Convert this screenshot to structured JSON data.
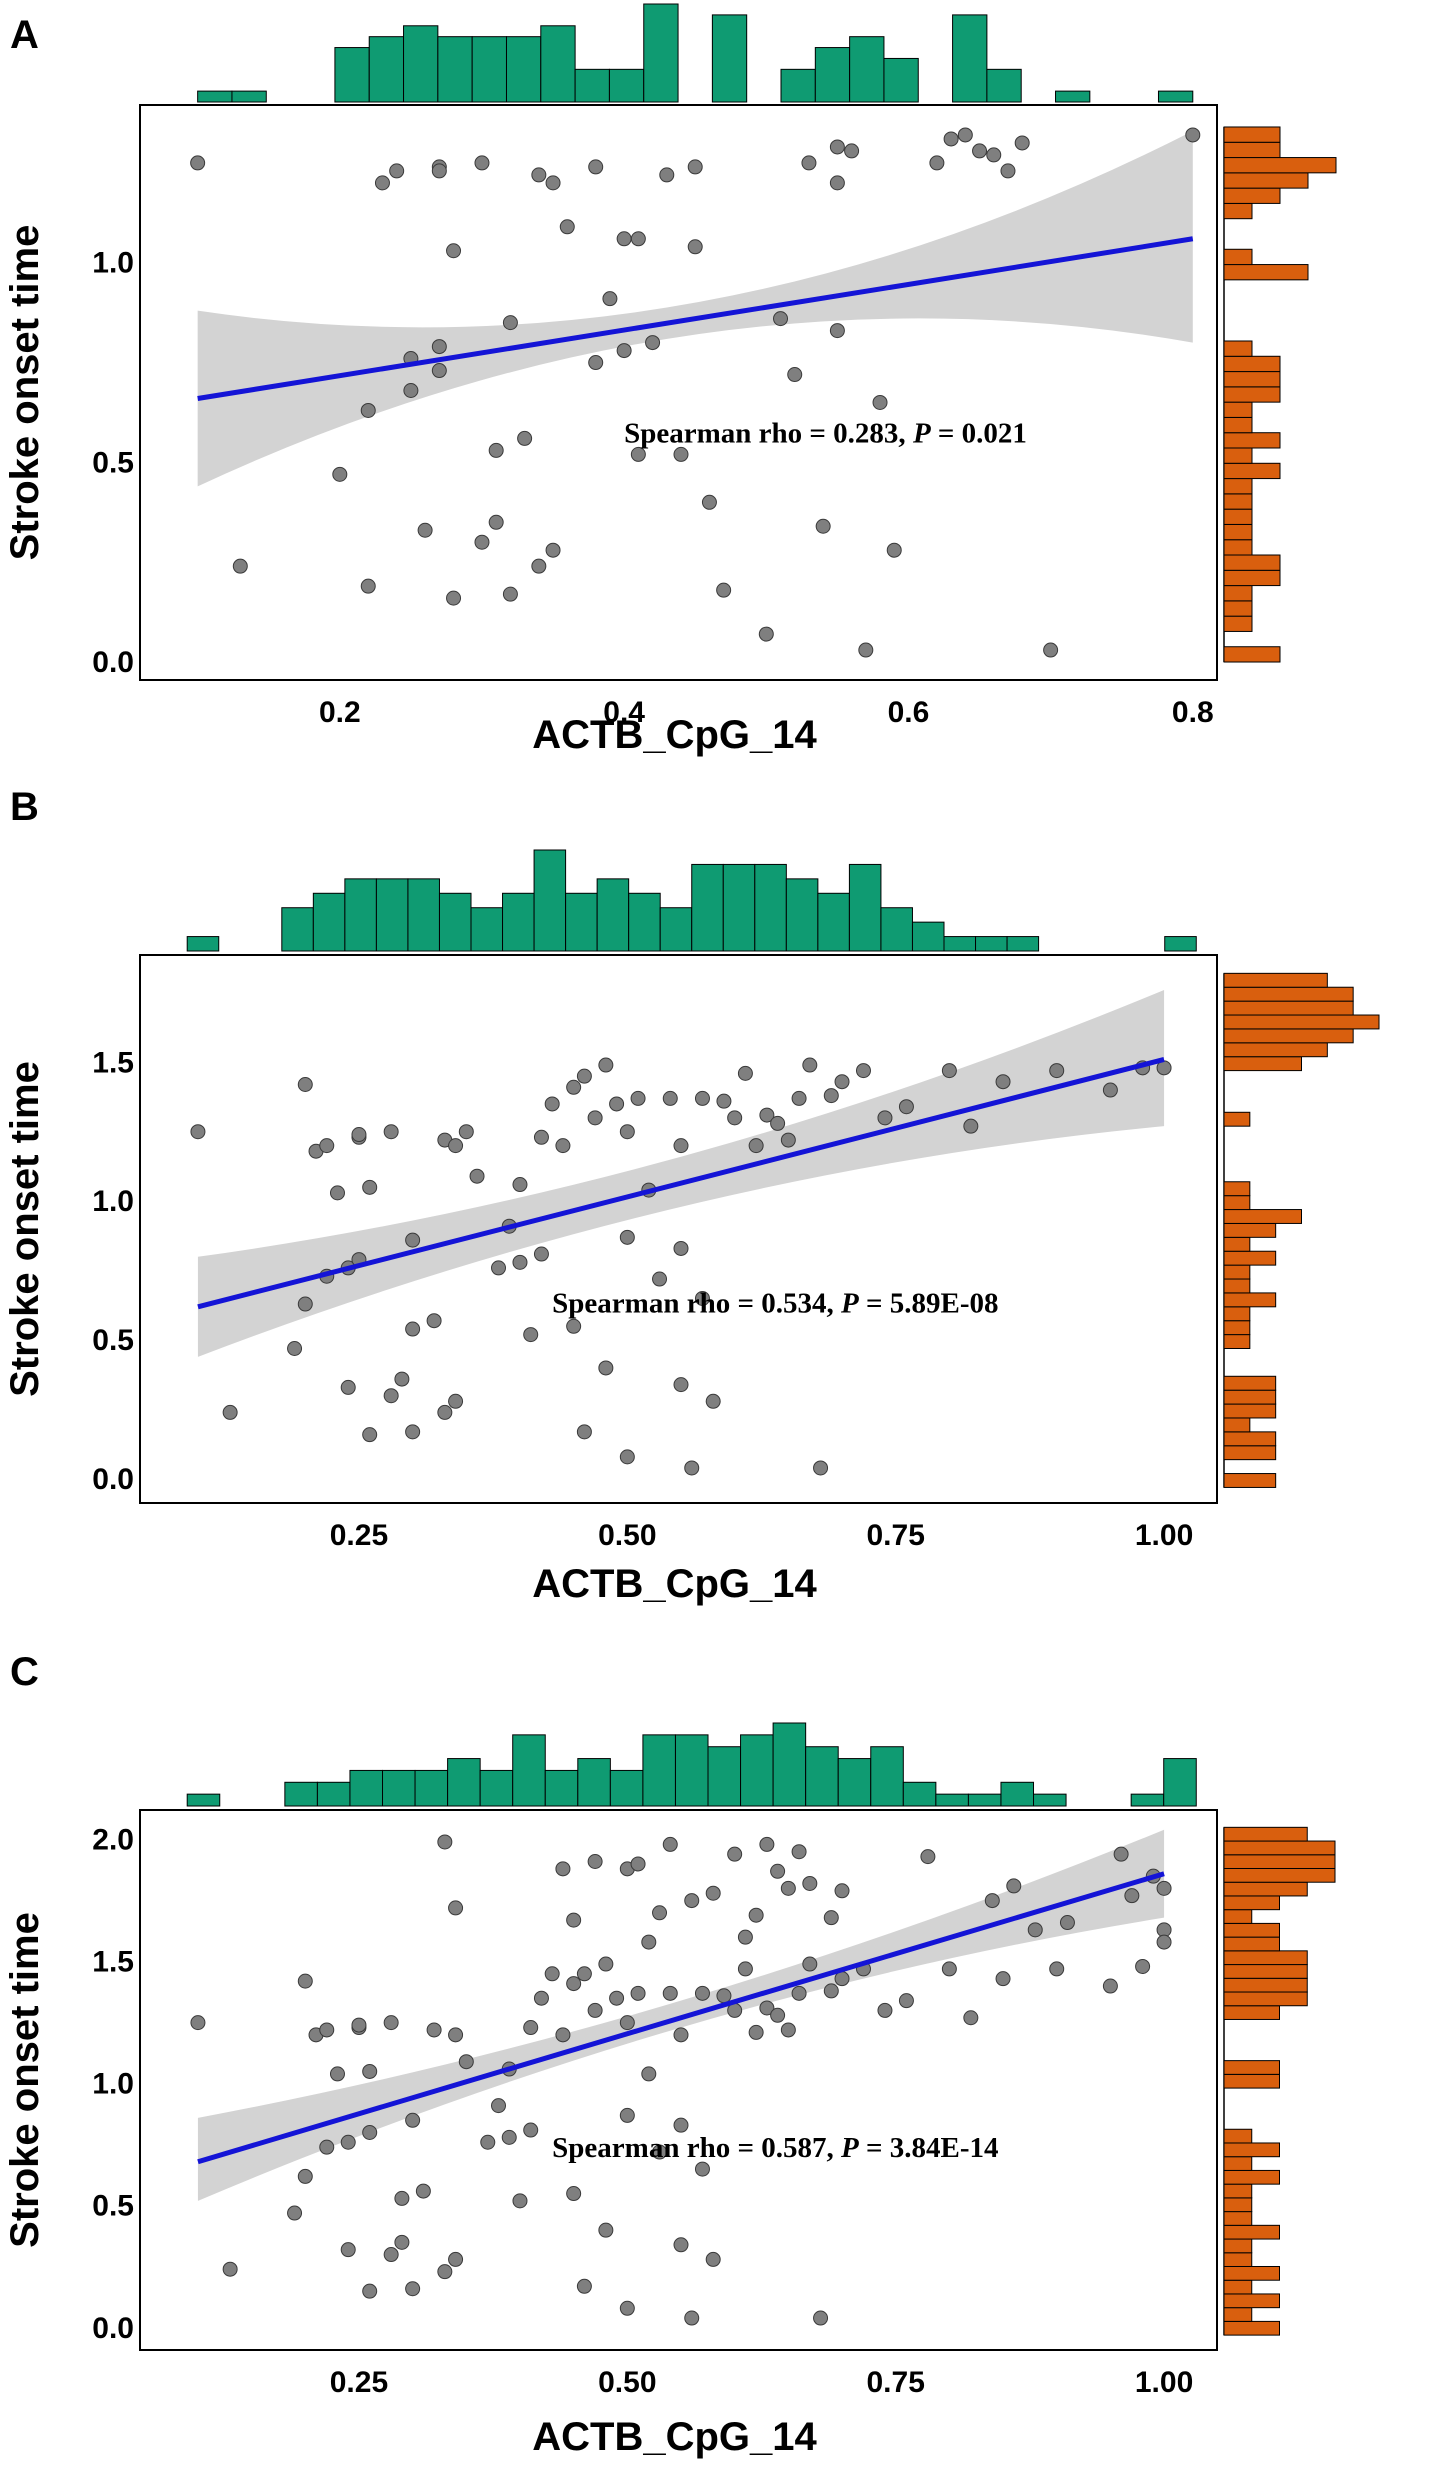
{
  "colors": {
    "top_hist": "#0f9b72",
    "right_hist": "#d95f0e",
    "fit_line": "#1414d6",
    "band": "#d3d3d3",
    "points": "#7f7f7f"
  },
  "chart_data": [
    {
      "type": "scatter",
      "panel": "A",
      "xlabel": "ACTB_CpG_14",
      "ylabel": "Stroke onset time",
      "xlim": [
        0.07,
        0.81
      ],
      "ylim": [
        -0.02,
        1.37
      ],
      "xticks": [
        0.2,
        0.4,
        0.6,
        0.8
      ],
      "xtick_labels": [
        "0.2",
        "0.4",
        "0.6",
        "0.8"
      ],
      "yticks": [
        0.0,
        0.5,
        1.0
      ],
      "ytick_labels": [
        "0.0",
        "0.5",
        "1.0"
      ],
      "annotation": {
        "prefix": "Spearman rho = 0.283, ",
        "p_label": "P",
        "suffix": " = 0.021"
      },
      "fit": {
        "x0": 0.1,
        "y0": 0.66,
        "x1": 0.8,
        "y1": 1.06,
        "lo0": 0.44,
        "lo_mid": 0.82,
        "lo1": 0.8,
        "hi0": 0.88,
        "hi_mid": 0.9,
        "hi1": 1.33
      },
      "points": [
        [
          0.1,
          1.25
        ],
        [
          0.13,
          0.24
        ],
        [
          0.2,
          0.47
        ],
        [
          0.22,
          0.19
        ],
        [
          0.22,
          0.63
        ],
        [
          0.23,
          1.2
        ],
        [
          0.24,
          1.23
        ],
        [
          0.25,
          0.76
        ],
        [
          0.25,
          0.68
        ],
        [
          0.26,
          0.33
        ],
        [
          0.27,
          1.24
        ],
        [
          0.27,
          1.23
        ],
        [
          0.27,
          0.73
        ],
        [
          0.27,
          0.79
        ],
        [
          0.28,
          0.16
        ],
        [
          0.28,
          1.03
        ],
        [
          0.3,
          1.25
        ],
        [
          0.3,
          0.3
        ],
        [
          0.31,
          0.53
        ],
        [
          0.31,
          0.35
        ],
        [
          0.32,
          0.17
        ],
        [
          0.32,
          0.85
        ],
        [
          0.33,
          0.56
        ],
        [
          0.34,
          1.22
        ],
        [
          0.34,
          0.24
        ],
        [
          0.35,
          0.28
        ],
        [
          0.35,
          1.2
        ],
        [
          0.36,
          1.09
        ],
        [
          0.38,
          1.24
        ],
        [
          0.38,
          0.75
        ],
        [
          0.39,
          0.91
        ],
        [
          0.4,
          0.78
        ],
        [
          0.4,
          1.06
        ],
        [
          0.41,
          1.06
        ],
        [
          0.41,
          0.52
        ],
        [
          0.42,
          0.8
        ],
        [
          0.43,
          1.22
        ],
        [
          0.44,
          0.52
        ],
        [
          0.45,
          1.04
        ],
        [
          0.45,
          1.24
        ],
        [
          0.46,
          0.4
        ],
        [
          0.47,
          0.18
        ],
        [
          0.5,
          0.07
        ],
        [
          0.51,
          0.86
        ],
        [
          0.52,
          0.72
        ],
        [
          0.53,
          1.25
        ],
        [
          0.54,
          0.34
        ],
        [
          0.55,
          1.29
        ],
        [
          0.55,
          1.2
        ],
        [
          0.55,
          0.83
        ],
        [
          0.56,
          1.28
        ],
        [
          0.57,
          0.03
        ],
        [
          0.58,
          0.65
        ],
        [
          0.59,
          0.28
        ],
        [
          0.62,
          1.25
        ],
        [
          0.63,
          1.31
        ],
        [
          0.64,
          1.32
        ],
        [
          0.65,
          1.28
        ],
        [
          0.66,
          1.27
        ],
        [
          0.67,
          1.23
        ],
        [
          0.68,
          1.3
        ],
        [
          0.7,
          0.03
        ],
        [
          0.8,
          1.32
        ]
      ],
      "top_hist_counts": [
        1,
        1,
        0,
        0,
        5,
        6,
        7,
        6,
        6,
        6,
        7,
        3,
        3,
        9,
        0,
        8,
        0,
        3,
        5,
        6,
        4,
        0,
        8,
        3,
        0,
        1,
        0,
        0,
        1
      ],
      "right_hist_counts": [
        2,
        0,
        1,
        1,
        1,
        2,
        2,
        1,
        1,
        1,
        1,
        1,
        2,
        1,
        2,
        1,
        1,
        2,
        2,
        2,
        1,
        0,
        0,
        0,
        0,
        3,
        1,
        0,
        0,
        1,
        2,
        3,
        4,
        2,
        2
      ]
    },
    {
      "type": "scatter",
      "panel": "B",
      "xlabel": "ACTB_CpG_14",
      "ylabel": "Stroke onset time",
      "xlim": [
        0.06,
        1.04
      ],
      "ylim": [
        -0.05,
        1.85
      ],
      "xticks": [
        0.25,
        0.5,
        0.75,
        1.0
      ],
      "xtick_labels": [
        "0.25",
        "0.50",
        "0.75",
        "1.00"
      ],
      "yticks": [
        0.0,
        0.5,
        1.0,
        1.5
      ],
      "ytick_labels": [
        "0.0",
        "0.5",
        "1.0",
        "1.5"
      ],
      "annotation": {
        "prefix": "Spearman rho = 0.534, ",
        "p_label": "P",
        "suffix": " = 5.89E-08"
      },
      "fit": {
        "x0": 0.1,
        "y0": 0.62,
        "x1": 1.0,
        "y1": 1.51,
        "lo0": 0.44,
        "lo_mid": 0.98,
        "lo1": 1.27,
        "hi0": 0.8,
        "hi_mid": 1.16,
        "hi1": 1.76
      },
      "points": [
        [
          0.1,
          1.25
        ],
        [
          0.13,
          0.24
        ],
        [
          0.19,
          0.47
        ],
        [
          0.2,
          0.63
        ],
        [
          0.2,
          1.42
        ],
        [
          0.21,
          1.18
        ],
        [
          0.22,
          0.73
        ],
        [
          0.22,
          1.2
        ],
        [
          0.23,
          1.03
        ],
        [
          0.24,
          0.33
        ],
        [
          0.24,
          0.76
        ],
        [
          0.25,
          1.23
        ],
        [
          0.25,
          1.24
        ],
        [
          0.25,
          0.79
        ],
        [
          0.26,
          0.16
        ],
        [
          0.26,
          1.05
        ],
        [
          0.28,
          1.25
        ],
        [
          0.28,
          0.3
        ],
        [
          0.29,
          0.36
        ],
        [
          0.3,
          0.54
        ],
        [
          0.3,
          0.17
        ],
        [
          0.3,
          0.86
        ],
        [
          0.32,
          0.57
        ],
        [
          0.33,
          1.22
        ],
        [
          0.33,
          0.24
        ],
        [
          0.34,
          0.28
        ],
        [
          0.34,
          1.2
        ],
        [
          0.35,
          1.25
        ],
        [
          0.36,
          1.09
        ],
        [
          0.38,
          0.76
        ],
        [
          0.39,
          0.91
        ],
        [
          0.4,
          1.06
        ],
        [
          0.4,
          0.78
        ],
        [
          0.41,
          0.52
        ],
        [
          0.42,
          0.81
        ],
        [
          0.42,
          1.23
        ],
        [
          0.43,
          1.35
        ],
        [
          0.44,
          1.2
        ],
        [
          0.45,
          1.41
        ],
        [
          0.45,
          0.55
        ],
        [
          0.46,
          0.17
        ],
        [
          0.46,
          1.45
        ],
        [
          0.47,
          1.3
        ],
        [
          0.48,
          1.49
        ],
        [
          0.48,
          0.4
        ],
        [
          0.49,
          1.35
        ],
        [
          0.5,
          0.08
        ],
        [
          0.5,
          1.25
        ],
        [
          0.5,
          0.87
        ],
        [
          0.51,
          1.37
        ],
        [
          0.52,
          1.04
        ],
        [
          0.53,
          0.72
        ],
        [
          0.54,
          1.37
        ],
        [
          0.55,
          0.34
        ],
        [
          0.55,
          1.2
        ],
        [
          0.55,
          0.83
        ],
        [
          0.56,
          0.04
        ],
        [
          0.57,
          1.37
        ],
        [
          0.57,
          0.65
        ],
        [
          0.58,
          0.28
        ],
        [
          0.59,
          1.36
        ],
        [
          0.6,
          1.3
        ],
        [
          0.61,
          1.46
        ],
        [
          0.62,
          1.2
        ],
        [
          0.63,
          1.31
        ],
        [
          0.64,
          1.28
        ],
        [
          0.65,
          1.22
        ],
        [
          0.66,
          1.37
        ],
        [
          0.67,
          1.49
        ],
        [
          0.68,
          0.04
        ],
        [
          0.69,
          1.38
        ],
        [
          0.7,
          1.43
        ],
        [
          0.72,
          1.47
        ],
        [
          0.74,
          1.3
        ],
        [
          0.76,
          1.34
        ],
        [
          0.8,
          1.47
        ],
        [
          0.82,
          1.27
        ],
        [
          0.85,
          1.43
        ],
        [
          0.9,
          1.47
        ],
        [
          0.95,
          1.4
        ],
        [
          0.98,
          1.48
        ],
        [
          1.0,
          1.48
        ]
      ],
      "top_hist_counts": [
        1,
        0,
        0,
        3,
        4,
        5,
        5,
        5,
        4,
        3,
        4,
        7,
        4,
        5,
        4,
        3,
        6,
        6,
        6,
        5,
        4,
        6,
        3,
        2,
        1,
        1,
        1,
        0,
        0,
        0,
        0,
        1
      ],
      "right_hist_counts": [
        2,
        0,
        2,
        2,
        1,
        2,
        2,
        2,
        0,
        0,
        1,
        1,
        1,
        2,
        1,
        1,
        2,
        1,
        2,
        3,
        1,
        1,
        0,
        0,
        0,
        0,
        1,
        0,
        0,
        0,
        3,
        4,
        5,
        6,
        5,
        5,
        4
      ]
    },
    {
      "type": "scatter",
      "panel": "C",
      "xlabel": "ACTB_CpG_14",
      "ylabel": "Stroke onset time",
      "xlim": [
        0.06,
        1.04
      ],
      "ylim": [
        -0.05,
        2.08
      ],
      "xticks": [
        0.25,
        0.5,
        0.75,
        1.0
      ],
      "xtick_labels": [
        "0.25",
        "0.50",
        "0.75",
        "1.00"
      ],
      "yticks": [
        0.0,
        0.5,
        1.0,
        1.5,
        2.0
      ],
      "ytick_labels": [
        "0.0",
        "0.5",
        "1.0",
        "1.5",
        "2.0"
      ],
      "annotation": {
        "prefix": "Spearman rho = 0.587, ",
        "p_label": "P",
        "suffix": " = 3.84E-14"
      },
      "fit": {
        "x0": 0.1,
        "y0": 0.68,
        "x1": 1.0,
        "y1": 1.86,
        "lo0": 0.52,
        "lo_mid": 1.23,
        "lo1": 1.68,
        "hi0": 0.86,
        "hi_mid": 1.34,
        "hi1": 2.04
      },
      "points": [
        [
          0.1,
          1.25
        ],
        [
          0.13,
          0.24
        ],
        [
          0.19,
          0.47
        ],
        [
          0.2,
          0.62
        ],
        [
          0.2,
          1.42
        ],
        [
          0.21,
          1.2
        ],
        [
          0.22,
          0.74
        ],
        [
          0.22,
          1.22
        ],
        [
          0.23,
          1.04
        ],
        [
          0.24,
          0.32
        ],
        [
          0.24,
          0.76
        ],
        [
          0.25,
          1.23
        ],
        [
          0.25,
          1.24
        ],
        [
          0.26,
          0.8
        ],
        [
          0.26,
          0.15
        ],
        [
          0.26,
          1.05
        ],
        [
          0.28,
          1.25
        ],
        [
          0.28,
          0.3
        ],
        [
          0.29,
          0.35
        ],
        [
          0.29,
          0.53
        ],
        [
          0.3,
          0.16
        ],
        [
          0.3,
          0.85
        ],
        [
          0.31,
          0.56
        ],
        [
          0.32,
          1.22
        ],
        [
          0.33,
          0.23
        ],
        [
          0.33,
          1.99
        ],
        [
          0.34,
          0.28
        ],
        [
          0.34,
          1.2
        ],
        [
          0.34,
          1.72
        ],
        [
          0.35,
          1.09
        ],
        [
          0.37,
          0.76
        ],
        [
          0.38,
          0.91
        ],
        [
          0.39,
          1.06
        ],
        [
          0.39,
          0.78
        ],
        [
          0.4,
          0.52
        ],
        [
          0.41,
          0.81
        ],
        [
          0.41,
          1.23
        ],
        [
          0.42,
          1.35
        ],
        [
          0.43,
          1.45
        ],
        [
          0.44,
          1.2
        ],
        [
          0.44,
          1.88
        ],
        [
          0.45,
          1.41
        ],
        [
          0.45,
          0.55
        ],
        [
          0.45,
          1.67
        ],
        [
          0.46,
          0.17
        ],
        [
          0.46,
          1.45
        ],
        [
          0.47,
          1.3
        ],
        [
          0.47,
          1.91
        ],
        [
          0.48,
          1.49
        ],
        [
          0.48,
          0.4
        ],
        [
          0.49,
          1.35
        ],
        [
          0.5,
          0.08
        ],
        [
          0.5,
          1.25
        ],
        [
          0.5,
          0.87
        ],
        [
          0.5,
          1.88
        ],
        [
          0.51,
          1.37
        ],
        [
          0.51,
          1.9
        ],
        [
          0.52,
          1.04
        ],
        [
          0.52,
          1.58
        ],
        [
          0.53,
          0.72
        ],
        [
          0.53,
          1.7
        ],
        [
          0.54,
          1.37
        ],
        [
          0.54,
          1.98
        ],
        [
          0.55,
          0.34
        ],
        [
          0.55,
          1.2
        ],
        [
          0.55,
          0.83
        ],
        [
          0.56,
          0.04
        ],
        [
          0.56,
          1.75
        ],
        [
          0.57,
          1.37
        ],
        [
          0.57,
          0.65
        ],
        [
          0.58,
          1.78
        ],
        [
          0.58,
          0.28
        ],
        [
          0.59,
          1.36
        ],
        [
          0.6,
          1.94
        ],
        [
          0.6,
          1.3
        ],
        [
          0.61,
          1.47
        ],
        [
          0.61,
          1.6
        ],
        [
          0.62,
          1.21
        ],
        [
          0.62,
          1.69
        ],
        [
          0.63,
          1.31
        ],
        [
          0.63,
          1.98
        ],
        [
          0.64,
          1.87
        ],
        [
          0.64,
          1.28
        ],
        [
          0.65,
          1.22
        ],
        [
          0.65,
          1.8
        ],
        [
          0.66,
          1.37
        ],
        [
          0.66,
          1.95
        ],
        [
          0.67,
          1.49
        ],
        [
          0.67,
          1.82
        ],
        [
          0.68,
          0.04
        ],
        [
          0.69,
          1.38
        ],
        [
          0.69,
          1.68
        ],
        [
          0.7,
          1.43
        ],
        [
          0.7,
          1.79
        ],
        [
          0.72,
          1.47
        ],
        [
          0.74,
          1.3
        ],
        [
          0.76,
          1.34
        ],
        [
          0.78,
          1.93
        ],
        [
          0.8,
          1.47
        ],
        [
          0.82,
          1.27
        ],
        [
          0.84,
          1.75
        ],
        [
          0.85,
          1.43
        ],
        [
          0.86,
          1.81
        ],
        [
          0.88,
          1.63
        ],
        [
          0.9,
          1.47
        ],
        [
          0.91,
          1.66
        ],
        [
          0.95,
          1.4
        ],
        [
          0.96,
          1.94
        ],
        [
          0.97,
          1.77
        ],
        [
          0.98,
          1.48
        ],
        [
          0.99,
          1.85
        ],
        [
          1.0,
          1.8
        ],
        [
          1.0,
          1.63
        ],
        [
          1.0,
          1.58
        ]
      ],
      "top_hist_counts": [
        1,
        0,
        0,
        2,
        2,
        3,
        3,
        3,
        4,
        3,
        6,
        3,
        4,
        3,
        6,
        6,
        5,
        6,
        7,
        5,
        4,
        5,
        2,
        1,
        1,
        2,
        1,
        0,
        0,
        1,
        4
      ],
      "right_hist_counts": [
        2,
        1,
        2,
        1,
        2,
        1,
        1,
        2,
        1,
        1,
        1,
        2,
        1,
        2,
        1,
        0,
        0,
        0,
        2,
        2,
        0,
        0,
        0,
        2,
        3,
        3,
        3,
        3,
        2,
        2,
        1,
        2,
        3,
        4,
        4,
        4,
        3
      ]
    }
  ]
}
